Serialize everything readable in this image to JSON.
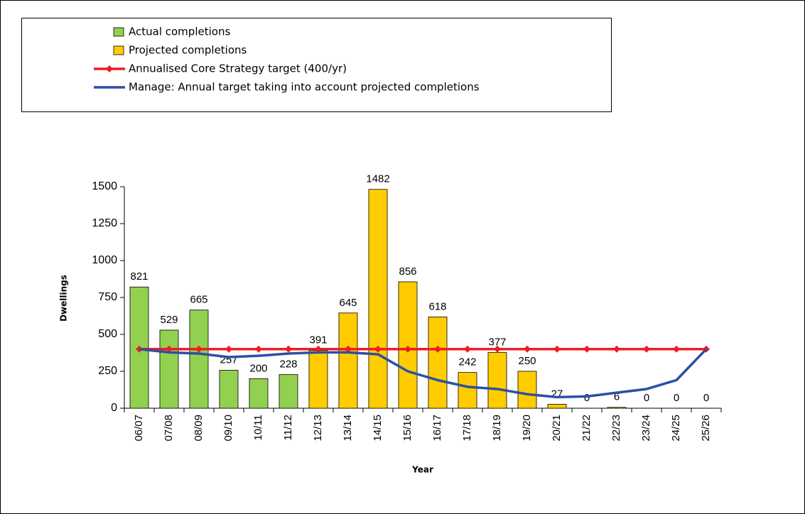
{
  "chart_data": {
    "type": "bar",
    "x_label": "Year",
    "y_label": "Dwellings",
    "categories": [
      "06/07",
      "07/08",
      "08/09",
      "09/10",
      "10/11",
      "11/12",
      "12/13",
      "13/14",
      "14/15",
      "15/16",
      "16/17",
      "17/18",
      "18/19",
      "19/20",
      "20/21",
      "21/22",
      "22/23",
      "23/24",
      "24/25",
      "25/26"
    ],
    "series": [
      {
        "name": "Actual completions",
        "type": "bar",
        "color": "#92d050",
        "values": [
          821,
          529,
          665,
          257,
          200,
          228,
          null,
          null,
          null,
          null,
          null,
          null,
          null,
          null,
          null,
          null,
          null,
          null,
          null,
          null
        ]
      },
      {
        "name": "Projected completions",
        "type": "bar",
        "color": "#ffcc00",
        "values": [
          null,
          null,
          null,
          null,
          null,
          null,
          391,
          645,
          1482,
          856,
          618,
          242,
          377,
          250,
          27,
          0,
          6,
          0,
          0,
          0
        ]
      },
      {
        "name": "Annualised Core Strategy target (400/yr)",
        "type": "line",
        "marker": "diamond",
        "color": "#ee1c25",
        "values": [
          400,
          400,
          400,
          400,
          400,
          400,
          400,
          400,
          400,
          400,
          400,
          400,
          400,
          400,
          400,
          400,
          400,
          400,
          400,
          400
        ]
      },
      {
        "name": "Manage: Annual target taking into account projected completions",
        "type": "line",
        "color": "#2e4fa3",
        "values": [
          400,
          378,
          370,
          346,
          355,
          370,
          378,
          378,
          365,
          250,
          190,
          145,
          130,
          95,
          75,
          80,
          105,
          130,
          190,
          400
        ]
      }
    ],
    "ylim": [
      0,
      1500
    ],
    "yticks": [
      0,
      250,
      500,
      750,
      1000,
      1250,
      1500
    ],
    "grid": false
  }
}
